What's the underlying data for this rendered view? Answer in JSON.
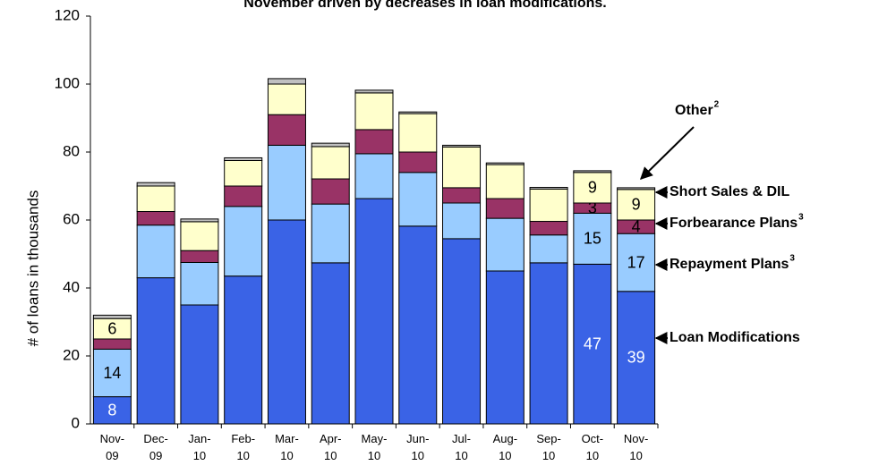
{
  "chart_data": {
    "type": "stacked_bar",
    "title": "November driven by decreases in loan modifications.",
    "y_label": "# of loans in thousands",
    "categories": [
      "Nov-09",
      "Dec-09",
      "Jan-10",
      "Feb-10",
      "Mar-10",
      "Apr-10",
      "May-10",
      "Jun-10",
      "Jul-10",
      "Aug-10",
      "Sep-10",
      "Oct-10",
      "Nov-10"
    ],
    "ylim": [
      0,
      120
    ],
    "yticks": [
      0,
      20,
      40,
      60,
      80,
      100,
      120
    ],
    "grid": false,
    "series": [
      {
        "name": "Loan Modifications",
        "color": "#3a63e6",
        "values": [
          8,
          43,
          35,
          43.5,
          60,
          47.4,
          66.3,
          58.2,
          54.5,
          45,
          47.4,
          47,
          39
        ],
        "value_labels": [
          "8",
          null,
          null,
          null,
          null,
          null,
          null,
          null,
          null,
          null,
          null,
          "47",
          "39"
        ]
      },
      {
        "name": "Repayment  Plans",
        "note": "3",
        "color": "#99ccff",
        "values": [
          14,
          15.5,
          12.5,
          20.5,
          22,
          17.3,
          13.2,
          15.8,
          10.5,
          15.5,
          8.2,
          15,
          17
        ],
        "value_labels": [
          "14",
          null,
          null,
          null,
          null,
          null,
          null,
          null,
          null,
          null,
          null,
          "15",
          "17"
        ]
      },
      {
        "name": "Forbearance Plans",
        "note": "3",
        "color": "#993366",
        "values": [
          3,
          4,
          3.5,
          6,
          9,
          7.4,
          7.1,
          6,
          4.5,
          5.8,
          4,
          3,
          4
        ],
        "value_labels": [
          null,
          null,
          null,
          null,
          null,
          null,
          null,
          null,
          null,
          null,
          null,
          "3",
          "4"
        ]
      },
      {
        "name": "Short Sales & DIL",
        "color": "#ffffcc",
        "values": [
          6,
          7.5,
          8.5,
          7.5,
          9,
          9.5,
          10.8,
          11.3,
          12,
          10,
          9.5,
          9,
          9
        ],
        "value_labels": [
          "6",
          null,
          null,
          null,
          null,
          null,
          null,
          null,
          null,
          null,
          null,
          "9",
          "9"
        ]
      },
      {
        "name": "Other",
        "note": "2",
        "color": "#c0c0c0",
        "values": [
          1,
          1,
          0.8,
          0.8,
          1.6,
          1,
          0.8,
          0.5,
          0.5,
          0.5,
          0.5,
          0.5,
          0.5
        ]
      }
    ]
  }
}
